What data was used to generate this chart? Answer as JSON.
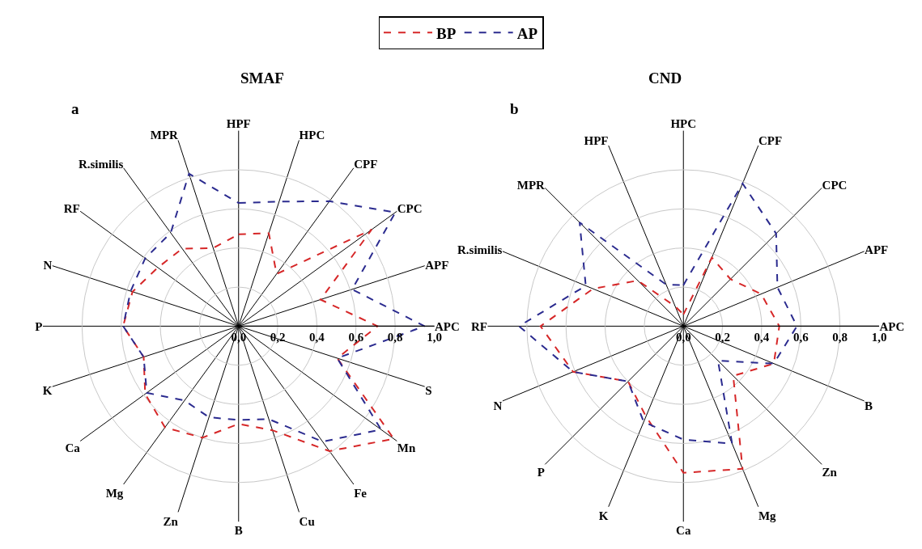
{
  "chart_data": [
    {
      "type": "radar",
      "title": "SMAF",
      "annotations": [
        "a"
      ],
      "categories": [
        "HPF",
        "HPC",
        "CPF",
        "CPC",
        "APF",
        "APC",
        "S",
        "Mn",
        "Fe",
        "Cu",
        "B",
        "Zn",
        "Mg",
        "Ca",
        "K",
        "P",
        "N",
        "RF",
        "R.similis",
        "MPR"
      ],
      "series": [
        {
          "name": "BP",
          "color": "#d62728",
          "values": [
            0.47,
            0.5,
            0.33,
            0.84,
            0.44,
            0.71,
            0.53,
            0.98,
            0.79,
            0.56,
            0.5,
            0.6,
            0.64,
            0.59,
            0.51,
            0.59,
            0.57,
            0.51,
            0.49,
            0.42
          ]
        },
        {
          "name": "AP",
          "color": "#2b2b8f",
          "values": [
            0.63,
            0.67,
            0.79,
            0.99,
            0.61,
            0.95,
            0.53,
            0.9,
            0.73,
            0.5,
            0.48,
            0.49,
            0.47,
            0.58,
            0.51,
            0.59,
            0.58,
            0.59,
            0.59,
            0.82
          ]
        }
      ],
      "ylim": [
        0,
        1
      ],
      "yticks": [
        {
          "value": 0,
          "label": "0,0"
        },
        {
          "value": 0.2,
          "label": "0,2"
        },
        {
          "value": 0.4,
          "label": "0,4"
        },
        {
          "value": 0.6,
          "label": "0,6"
        },
        {
          "value": 0.8,
          "label": "0,8"
        },
        {
          "value": 1,
          "label": "1,0"
        }
      ],
      "grid": true,
      "legend": "top",
      "line_style": "dashed",
      "marker": "none"
    },
    {
      "type": "radar",
      "title": "CND",
      "annotations": [
        "b"
      ],
      "categories": [
        "HPC",
        "CPF",
        "CPC",
        "APF",
        "APC",
        "B",
        "Zn",
        "Mg",
        "Ca",
        "K",
        "P",
        "N",
        "RF",
        "R.similis",
        "MPR",
        "HPF"
      ],
      "series": [
        {
          "color": "#d62728",
          "values": [
            0.06,
            0.38,
            0.34,
            0.43,
            0.49,
            0.5,
            0.36,
            0.79,
            0.75,
            0.5,
            0.4,
            0.61,
            0.73,
            0.5,
            0.33,
            0.11
          ]
        },
        {
          "color": "#2b2b8f",
          "values": [
            0.21,
            0.79,
            0.67,
            0.52,
            0.58,
            0.5,
            0.25,
            0.65,
            0.58,
            0.53,
            0.4,
            0.61,
            0.84,
            0.54,
            0.75,
            0.23
          ]
        }
      ],
      "ylim": [
        0,
        1
      ],
      "yticks": [
        {
          "value": 0,
          "label": "0,0"
        },
        {
          "value": 0.2,
          "label": "0,2"
        },
        {
          "value": 0.4,
          "label": "0,4"
        },
        {
          "value": 0.6,
          "label": "0,6"
        },
        {
          "value": 0.8,
          "label": "0,8"
        },
        {
          "value": 1,
          "label": "1,0"
        }
      ],
      "grid": true,
      "line_style": "dashed",
      "marker": "none"
    }
  ]
}
